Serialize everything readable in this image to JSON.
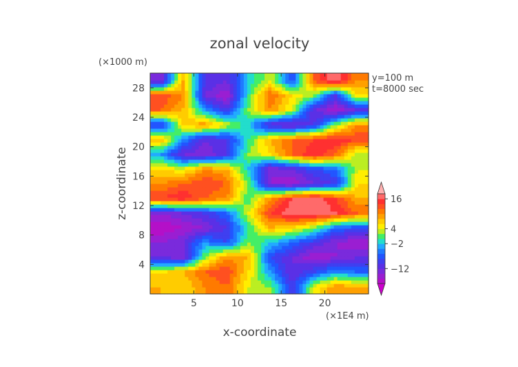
{
  "chart_data": {
    "type": "heatmap",
    "title": "zonal velocity",
    "xlabel": "x-coordinate",
    "ylabel": "z-coordinate",
    "x_unit": "(×1E4 m)",
    "y_unit": "(×1000 m)",
    "annotations": [
      "y=100 m",
      "t=8000 sec"
    ],
    "xlim": [
      0,
      25
    ],
    "ylim": [
      0,
      30
    ],
    "x_ticks": [
      5,
      10,
      15,
      20
    ],
    "y_ticks": [
      4,
      8,
      12,
      16,
      20,
      24,
      28
    ],
    "grid": false,
    "colorbar": {
      "placement": "right",
      "min": -20,
      "max": 20,
      "tick_values": [
        16,
        4,
        -2,
        -12
      ],
      "tick_labels": [
        "16",
        "4",
        "−2",
        "−12"
      ],
      "levels": [
        -20,
        -18,
        -16,
        -14,
        -12,
        -10,
        -8,
        -6,
        -4,
        -2,
        0,
        2,
        4,
        6,
        8,
        10,
        12,
        14,
        16,
        18,
        20
      ],
      "colors": [
        "#cc00cc",
        "#b410c8",
        "#9a1ed2",
        "#7a2adc",
        "#5a30e6",
        "#3f3ff0",
        "#2255ff",
        "#1f7aff",
        "#22aaff",
        "#22ddcc",
        "#44ee66",
        "#bbee22",
        "#ffee00",
        "#ffcc00",
        "#ffa000",
        "#ff7a00",
        "#ff5020",
        "#ff3030",
        "#ff6a6a",
        "#ffb0b0"
      ]
    },
    "z_grid": {
      "x": [
        1.25,
        3.75,
        6.25,
        8.75,
        11.25,
        13.75,
        16.25,
        18.75,
        21.25,
        23.75
      ],
      "z": [
        1,
        3,
        5,
        7,
        9,
        11,
        13,
        15,
        17,
        19,
        21,
        23,
        25,
        27,
        29
      ],
      "values": [
        [
          8,
          6,
          10,
          12,
          4,
          2,
          -10,
          4,
          10,
          8
        ],
        [
          6,
          8,
          12,
          14,
          6,
          -4,
          -12,
          -8,
          -4,
          -6
        ],
        [
          -12,
          -14,
          2,
          10,
          8,
          -8,
          -12,
          -16,
          -14,
          -12
        ],
        [
          -14,
          -12,
          -4,
          -8,
          2,
          -2,
          -6,
          -10,
          -14,
          -16
        ],
        [
          -18,
          -16,
          -14,
          -10,
          0,
          8,
          6,
          2,
          -6,
          -8
        ],
        [
          -14,
          -12,
          -10,
          -6,
          4,
          14,
          18,
          18,
          16,
          12
        ],
        [
          14,
          16,
          12,
          10,
          0,
          10,
          16,
          18,
          14,
          8
        ],
        [
          10,
          12,
          14,
          12,
          2,
          -14,
          -16,
          -12,
          -10,
          6
        ],
        [
          6,
          4,
          10,
          8,
          -2,
          -14,
          -12,
          -8,
          -6,
          4
        ],
        [
          -4,
          -12,
          -14,
          -10,
          2,
          6,
          12,
          16,
          12,
          2
        ],
        [
          8,
          -4,
          -12,
          -10,
          0,
          8,
          12,
          14,
          16,
          14
        ],
        [
          -10,
          6,
          10,
          4,
          -2,
          -12,
          -14,
          -10,
          2,
          10
        ],
        [
          12,
          8,
          -4,
          -10,
          2,
          10,
          4,
          -12,
          -16,
          -12
        ],
        [
          14,
          10,
          -12,
          -16,
          0,
          12,
          6,
          2,
          -10,
          6
        ],
        [
          -14,
          8,
          -10,
          -12,
          -2,
          4,
          -8,
          12,
          18,
          10
        ]
      ]
    }
  }
}
